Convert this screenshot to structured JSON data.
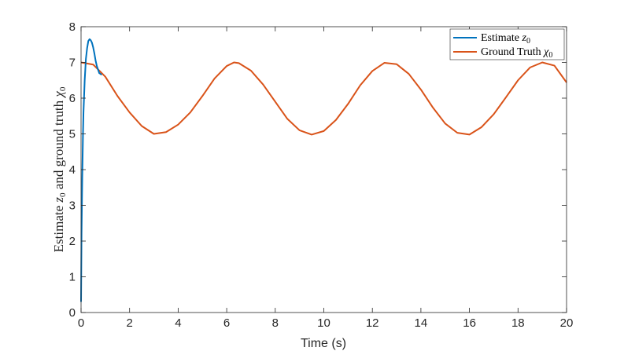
{
  "chart_data": {
    "type": "line",
    "title": "",
    "xlabel": "Time (s)",
    "ylabel": "Estimate ż0 and ground truth χ̇0",
    "ylabel_parts": {
      "a": "Estimate ",
      "v1": "z",
      "s1": "0",
      "b": " and ground truth ",
      "v2": "χ",
      "s2": "0"
    },
    "xlim": [
      0,
      20
    ],
    "ylim": [
      0,
      8
    ],
    "xticks": [
      0,
      2,
      4,
      6,
      8,
      10,
      12,
      14,
      16,
      18,
      20
    ],
    "yticks": [
      0,
      1,
      2,
      3,
      4,
      5,
      6,
      7,
      8
    ],
    "grid": false,
    "legend_position": "top-right",
    "series": [
      {
        "name": "Estimate ż0",
        "legend": {
          "prefix": "Estimate ",
          "var": "z",
          "sub": "0"
        },
        "color": "#0072BD",
        "x": [
          0.0,
          0.02,
          0.05,
          0.08,
          0.1,
          0.15,
          0.2,
          0.25,
          0.3,
          0.35,
          0.4,
          0.45,
          0.5,
          0.55,
          0.6,
          0.65,
          0.7,
          0.75,
          0.8,
          0.85
        ],
        "y": [
          0.3,
          2.2,
          3.8,
          5.0,
          5.6,
          6.5,
          7.1,
          7.4,
          7.6,
          7.65,
          7.62,
          7.55,
          7.42,
          7.25,
          7.05,
          6.9,
          6.8,
          6.7,
          6.68,
          6.65
        ]
      },
      {
        "name": "Ground Truth χ̇0",
        "legend": {
          "prefix": "Ground Truth ",
          "var": "χ",
          "sub": "0"
        },
        "color": "#D95319",
        "x": [
          0.0,
          0.5,
          1.0,
          1.5,
          2.0,
          2.5,
          3.0,
          3.5,
          4.0,
          4.5,
          5.0,
          5.5,
          6.0,
          6.3,
          6.5,
          7.0,
          7.5,
          8.0,
          8.5,
          9.0,
          9.5,
          10.0,
          10.5,
          11.0,
          11.5,
          12.0,
          12.5,
          13.0,
          13.5,
          14.0,
          14.5,
          15.0,
          15.5,
          16.0,
          16.5,
          17.0,
          17.5,
          18.0,
          18.5,
          19.0,
          19.5,
          20.0
        ],
        "y": [
          7.0,
          6.94,
          6.6,
          6.06,
          5.6,
          5.22,
          5.0,
          5.05,
          5.26,
          5.6,
          6.06,
          6.55,
          6.9,
          7.0,
          6.98,
          6.77,
          6.38,
          5.9,
          5.42,
          5.1,
          4.98,
          5.08,
          5.39,
          5.84,
          6.36,
          6.76,
          6.99,
          6.95,
          6.68,
          6.24,
          5.73,
          5.29,
          5.03,
          4.98,
          5.19,
          5.55,
          6.02,
          6.5,
          6.86,
          7.0,
          6.91,
          6.44
        ]
      }
    ]
  }
}
